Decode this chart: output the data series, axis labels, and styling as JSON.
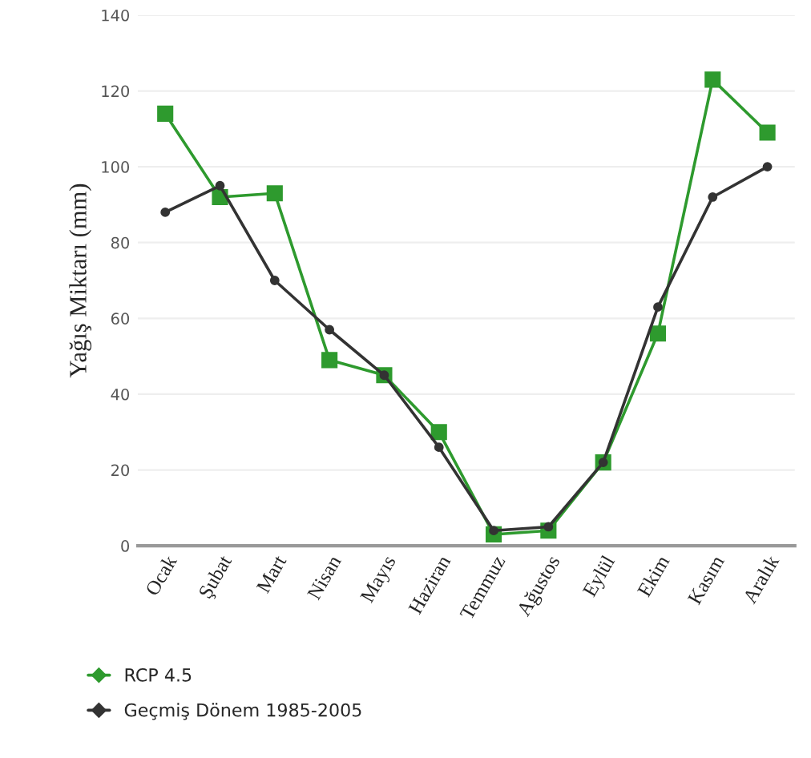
{
  "chart_data": {
    "type": "line",
    "ylabel": "Yağış Miktarı (mm)",
    "categories": [
      "Ocak",
      "Şubat",
      "Mart",
      "Nisan",
      "Mayıs",
      "Haziran",
      "Temmuz",
      "Ağustos",
      "Eylül",
      "Ekim",
      "Kasım",
      "Aralık"
    ],
    "series": [
      {
        "name": "RCP 4.5",
        "color": "#2e9a2e",
        "marker": "square",
        "values": [
          114,
          92,
          93,
          49,
          45,
          30,
          3,
          4,
          22,
          56,
          123,
          109
        ]
      },
      {
        "name": "Geçmiş Dönem 1985-2005",
        "color": "#333333",
        "marker": "circle",
        "values": [
          88,
          95,
          70,
          57,
          45,
          26,
          4,
          5,
          22,
          63,
          92,
          100
        ]
      }
    ],
    "ylim": [
      0,
      140
    ],
    "yticks": [
      0,
      20,
      40,
      60,
      80,
      100,
      120,
      140
    ],
    "grid": "y",
    "legend": "bottom",
    "line_style": "solid"
  }
}
